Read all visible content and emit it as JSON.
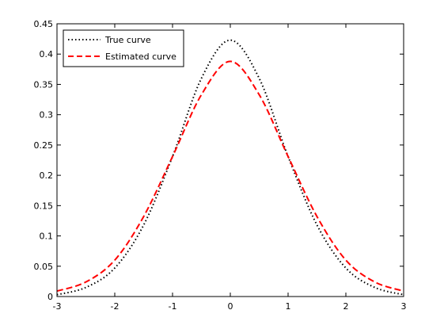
{
  "chart_data": {
    "type": "line",
    "title": "",
    "xlabel": "",
    "ylabel": "",
    "xlim": [
      -3,
      3
    ],
    "ylim": [
      0,
      0.45
    ],
    "x_ticks": [
      -3,
      -2,
      -1,
      0,
      1,
      2,
      3
    ],
    "y_ticks": [
      0,
      0.05,
      0.1,
      0.15,
      0.2,
      0.25,
      0.3,
      0.35,
      0.4,
      0.45
    ],
    "x_tick_labels": [
      "-3",
      "-2",
      "-1",
      "0",
      "1",
      "2",
      "3"
    ],
    "y_tick_labels": [
      "0",
      "0.05",
      "0.1",
      "0.15",
      "0.2",
      "0.25",
      "0.3",
      "0.35",
      "0.4",
      "0.45"
    ],
    "grid": false,
    "legend_position": "top-left",
    "series": [
      {
        "name": "True curve",
        "color": "#000000",
        "style": "dotted",
        "x": [
          -3,
          -2.5,
          -2,
          -1.5,
          -1,
          -0.5,
          0,
          0.5,
          1,
          1.5,
          2,
          2.5,
          3
        ],
        "y": [
          0.003,
          0.015,
          0.047,
          0.118,
          0.231,
          0.36,
          0.423,
          0.36,
          0.231,
          0.118,
          0.047,
          0.015,
          0.003
        ]
      },
      {
        "name": "Estimated curve",
        "color": "#ff0000",
        "style": "dashed",
        "x": [
          -3,
          -2.5,
          -2,
          -1.5,
          -1,
          -0.5,
          0,
          0.5,
          1,
          1.5,
          2,
          2.5,
          3
        ],
        "y": [
          0.009,
          0.024,
          0.06,
          0.132,
          0.231,
          0.333,
          0.388,
          0.333,
          0.231,
          0.132,
          0.06,
          0.024,
          0.009
        ]
      }
    ]
  }
}
